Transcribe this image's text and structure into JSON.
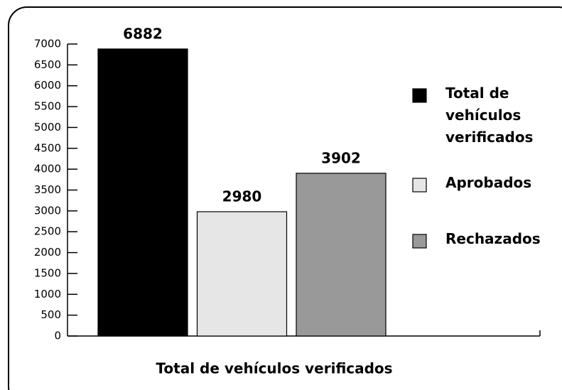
{
  "chart_data": {
    "type": "bar",
    "categories": [
      "Total de vehículos verificados"
    ],
    "series": [
      {
        "name": "Total de vehículos verificados",
        "color": "#000000",
        "values": [
          6882
        ]
      },
      {
        "name": "Aprobados",
        "color": "#e6e6e6",
        "values": [
          2980
        ]
      },
      {
        "name": "Rechazados",
        "color": "#999999",
        "values": [
          3902
        ]
      }
    ],
    "ylim": [
      0,
      7000
    ],
    "yticks": [
      0,
      500,
      1000,
      1500,
      2000,
      2500,
      3000,
      3500,
      4000,
      4500,
      5000,
      5500,
      6000,
      6500,
      7000
    ],
    "legend": "right"
  }
}
